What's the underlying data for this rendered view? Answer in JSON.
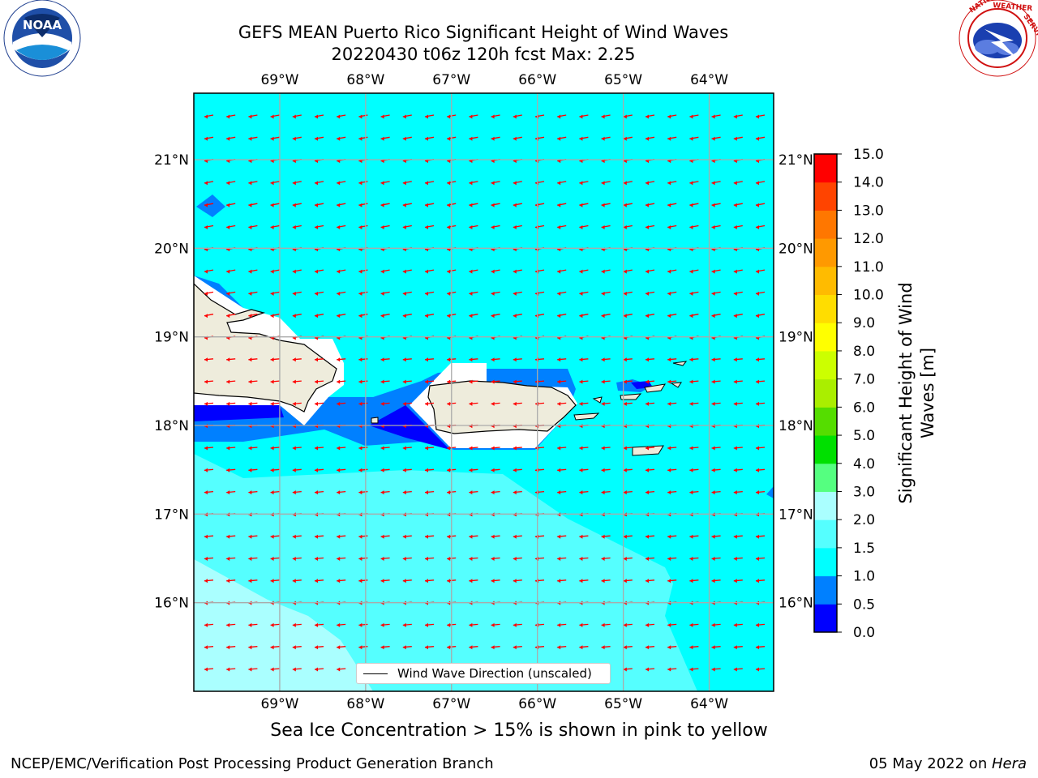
{
  "title": {
    "line1": "GEFS MEAN Puerto Rico Significant Height of Wind Waves",
    "line2": "20220430 t06z 120h fcst   Max: 2.25"
  },
  "map": {
    "lon_labels": [
      "69°W",
      "68°W",
      "67°W",
      "66°W",
      "65°W",
      "64°W"
    ],
    "lat_labels": [
      "21°N",
      "20°N",
      "19°N",
      "18°N",
      "17°N",
      "16°N"
    ],
    "lon_values": [
      -69,
      -68,
      -67,
      -66,
      -65,
      -64
    ],
    "lat_values": [
      21,
      20,
      19,
      18,
      17,
      16
    ],
    "extent": {
      "lon_min": -70,
      "lon_max": -63.25,
      "lat_min": 15,
      "lat_max": 21.75
    },
    "background_level_color": "#00ffff",
    "arrow_color": "#ff0000",
    "arrow_direction": "toward west-southwest (easterly waves)",
    "land_color": "#eeecdc",
    "grid": true
  },
  "legend": {
    "label": "Wind Wave Direction (unscaled)"
  },
  "colorbar": {
    "title_line1": "Significant Height of Wind",
    "title_line2": "Waves [m]",
    "ticks": [
      "0.0",
      "0.5",
      "1.0",
      "1.5",
      "2.0",
      "3.0",
      "4.0",
      "5.0",
      "6.0",
      "7.0",
      "8.0",
      "9.0",
      "10.0",
      "11.0",
      "12.0",
      "13.0",
      "14.0",
      "15.0"
    ],
    "colors": [
      "#0000ff",
      "#0080ff",
      "#00ffff",
      "#55ffff",
      "#aaffff",
      "#55ff80",
      "#00e000",
      "#55dd00",
      "#aaee00",
      "#ccff00",
      "#ffff00",
      "#ffdd00",
      "#ffbb00",
      "#ff9900",
      "#ff7700",
      "#ff4400",
      "#ff0000"
    ]
  },
  "logos": {
    "left": {
      "text": "NOAA",
      "ring_text": "NATIONAL OCEANIC AND ATMOSPHERIC ADMINISTRATION · U.S. DEPARTMENT OF COMMERCE"
    },
    "right": {
      "ring_text": "NATIONAL WEATHER SERVICE"
    }
  },
  "caption": "Sea Ice Concentration > 15% is shown in pink to yellow",
  "footer": {
    "left": "NCEP/EMC/Verification Post Processing Product Generation Branch",
    "right_date": "05 May 2022 on ",
    "right_host": "Hera"
  }
}
